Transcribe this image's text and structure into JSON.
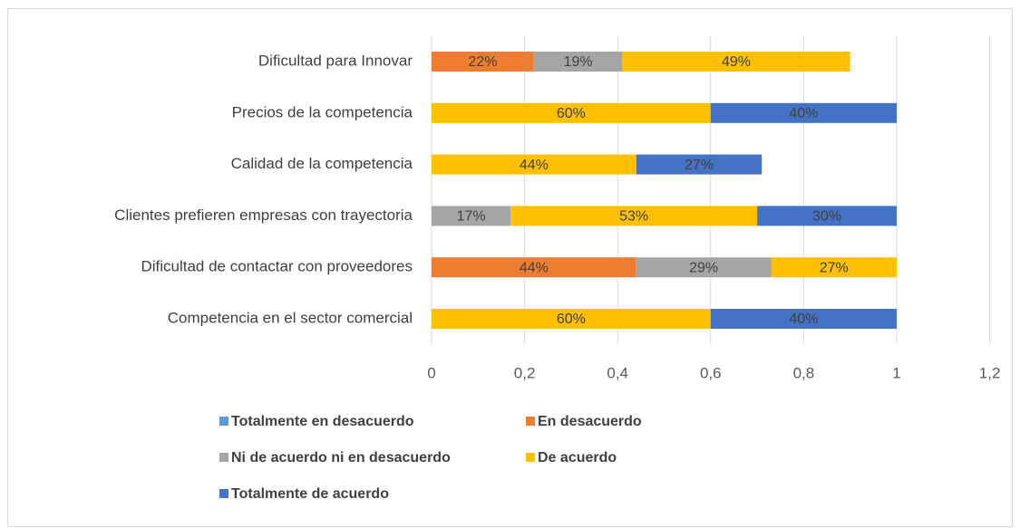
{
  "chart_data": {
    "type": "stacked-barh",
    "categories": [
      "Dificultad para Innovar",
      "Precios de la competencia",
      "Calidad de la competencia",
      "Clientes prefieren empresas con trayectoria",
      "Dificultad de contactar con proveedores",
      "Competencia en el sector comercial"
    ],
    "series": [
      {
        "name": "Totalmente en  desacuerdo",
        "color": "#5b9bd5",
        "values": [
          null,
          null,
          null,
          null,
          null,
          null
        ],
        "value_labels": [
          null,
          null,
          null,
          null,
          null,
          null
        ]
      },
      {
        "name": "En desacuerdo",
        "color": "#ed7d31",
        "values": [
          0.22,
          null,
          null,
          null,
          0.44,
          null
        ],
        "value_labels": [
          "22%",
          null,
          null,
          null,
          "44%",
          null
        ]
      },
      {
        "name": "Ni de acuerdo ni en desacuerdo",
        "color": "#a5a5a5",
        "values": [
          0.19,
          null,
          null,
          0.17,
          0.29,
          null
        ],
        "value_labels": [
          "19%",
          null,
          null,
          "17%",
          "29%",
          null
        ]
      },
      {
        "name": "De acuerdo",
        "color": "#ffc000",
        "values": [
          0.49,
          0.6,
          0.44,
          0.53,
          0.27,
          0.6
        ],
        "value_labels": [
          "49%",
          "60%",
          "44%",
          "53%",
          "27%",
          "60%"
        ]
      },
      {
        "name": "Totalmente de acuerdo",
        "color": "#4472c4",
        "values": [
          null,
          0.4,
          0.27,
          0.3,
          null,
          0.4
        ],
        "value_labels": [
          null,
          "40%",
          "27%",
          "30%",
          null,
          "40%"
        ]
      }
    ],
    "xlim": [
      0,
      1.2
    ],
    "xticks": [
      0,
      {
        "value": 0.2,
        "label": "0,2"
      },
      {
        "value": 0.4,
        "label": "0,4"
      },
      {
        "value": 0.6,
        "label": "0,6"
      },
      {
        "value": 0.8,
        "label": "0,8"
      },
      1,
      {
        "value": 1.2,
        "label": "1,2"
      }
    ],
    "grid": true
  }
}
